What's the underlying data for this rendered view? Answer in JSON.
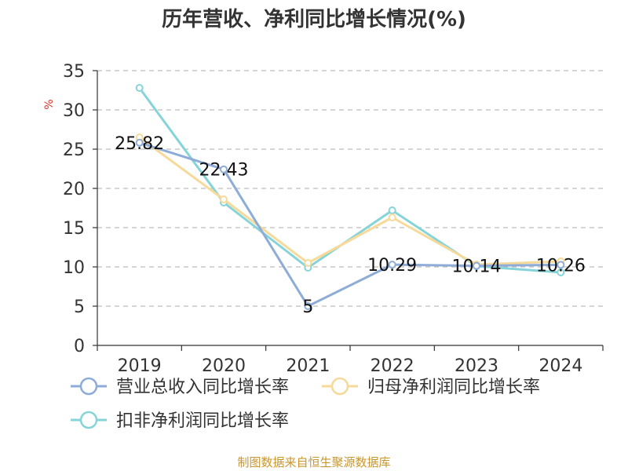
{
  "chart_data": {
    "type": "line",
    "title": "历年营收、净利同比增长情况(%)",
    "ylabel": "%",
    "categories": [
      "2019",
      "2020",
      "2021",
      "2022",
      "2023",
      "2024"
    ],
    "ylim": [
      0,
      35
    ],
    "yticks": [
      0,
      5,
      10,
      15,
      20,
      25,
      30,
      35
    ],
    "grid": true,
    "legend_position": "bottom-left",
    "series": [
      {
        "name": "营业总收入同比增长率",
        "color": "#8eacd7",
        "values": [
          25.82,
          22.43,
          5,
          10.29,
          10.14,
          10.26
        ],
        "labels": [
          "25.82",
          "22.43",
          "5",
          "10.29",
          "10.14",
          "10.26"
        ]
      },
      {
        "name": "归母净利润同比增长率",
        "color": "#f7d99a",
        "values": [
          26.5,
          18.6,
          10.5,
          16.3,
          10.3,
          10.7
        ]
      },
      {
        "name": "扣非净利润同比增长率",
        "color": "#86d4d8",
        "values": [
          32.8,
          18.2,
          9.9,
          17.2,
          10.1,
          9.3
        ]
      }
    ]
  },
  "source": "制图数据来自恒生聚源数据库"
}
